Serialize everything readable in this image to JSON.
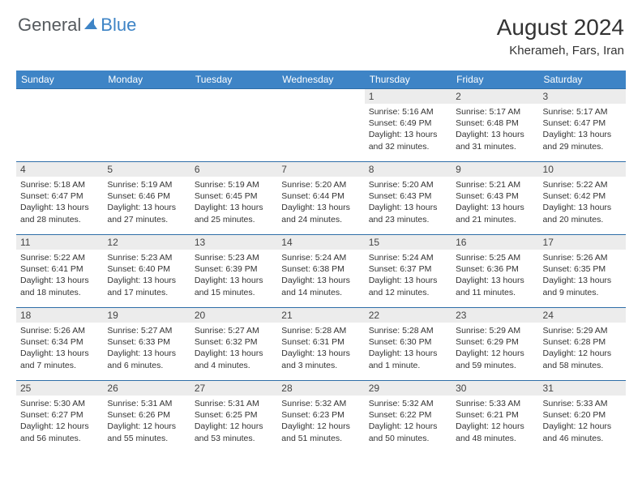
{
  "logo": {
    "text1": "General",
    "text2": "Blue",
    "text1_color": "#5a5f63",
    "text2_color": "#3e84c6",
    "sail_color": "#3e84c6"
  },
  "header": {
    "month_title": "August 2024",
    "location": "Kherameh, Fars, Iran"
  },
  "style": {
    "header_bg": "#3e84c6",
    "header_text": "#ffffff",
    "row_border": "#2f6ea8",
    "daynum_bg": "#ececec",
    "body_text": "#333333",
    "font_daynum": 12,
    "font_info": 10.5
  },
  "day_labels": [
    "Sunday",
    "Monday",
    "Tuesday",
    "Wednesday",
    "Thursday",
    "Friday",
    "Saturday"
  ],
  "labels": {
    "sunrise": "Sunrise:",
    "sunset": "Sunset:",
    "daylight": "Daylight:"
  },
  "weeks": [
    [
      {
        "empty": true
      },
      {
        "empty": true
      },
      {
        "empty": true
      },
      {
        "empty": true
      },
      {
        "n": "1",
        "sr": "5:16 AM",
        "ss": "6:49 PM",
        "dl": "13 hours and 32 minutes."
      },
      {
        "n": "2",
        "sr": "5:17 AM",
        "ss": "6:48 PM",
        "dl": "13 hours and 31 minutes."
      },
      {
        "n": "3",
        "sr": "5:17 AM",
        "ss": "6:47 PM",
        "dl": "13 hours and 29 minutes."
      }
    ],
    [
      {
        "n": "4",
        "sr": "5:18 AM",
        "ss": "6:47 PM",
        "dl": "13 hours and 28 minutes."
      },
      {
        "n": "5",
        "sr": "5:19 AM",
        "ss": "6:46 PM",
        "dl": "13 hours and 27 minutes."
      },
      {
        "n": "6",
        "sr": "5:19 AM",
        "ss": "6:45 PM",
        "dl": "13 hours and 25 minutes."
      },
      {
        "n": "7",
        "sr": "5:20 AM",
        "ss": "6:44 PM",
        "dl": "13 hours and 24 minutes."
      },
      {
        "n": "8",
        "sr": "5:20 AM",
        "ss": "6:43 PM",
        "dl": "13 hours and 23 minutes."
      },
      {
        "n": "9",
        "sr": "5:21 AM",
        "ss": "6:43 PM",
        "dl": "13 hours and 21 minutes."
      },
      {
        "n": "10",
        "sr": "5:22 AM",
        "ss": "6:42 PM",
        "dl": "13 hours and 20 minutes."
      }
    ],
    [
      {
        "n": "11",
        "sr": "5:22 AM",
        "ss": "6:41 PM",
        "dl": "13 hours and 18 minutes."
      },
      {
        "n": "12",
        "sr": "5:23 AM",
        "ss": "6:40 PM",
        "dl": "13 hours and 17 minutes."
      },
      {
        "n": "13",
        "sr": "5:23 AM",
        "ss": "6:39 PM",
        "dl": "13 hours and 15 minutes."
      },
      {
        "n": "14",
        "sr": "5:24 AM",
        "ss": "6:38 PM",
        "dl": "13 hours and 14 minutes."
      },
      {
        "n": "15",
        "sr": "5:24 AM",
        "ss": "6:37 PM",
        "dl": "13 hours and 12 minutes."
      },
      {
        "n": "16",
        "sr": "5:25 AM",
        "ss": "6:36 PM",
        "dl": "13 hours and 11 minutes."
      },
      {
        "n": "17",
        "sr": "5:26 AM",
        "ss": "6:35 PM",
        "dl": "13 hours and 9 minutes."
      }
    ],
    [
      {
        "n": "18",
        "sr": "5:26 AM",
        "ss": "6:34 PM",
        "dl": "13 hours and 7 minutes."
      },
      {
        "n": "19",
        "sr": "5:27 AM",
        "ss": "6:33 PM",
        "dl": "13 hours and 6 minutes."
      },
      {
        "n": "20",
        "sr": "5:27 AM",
        "ss": "6:32 PM",
        "dl": "13 hours and 4 minutes."
      },
      {
        "n": "21",
        "sr": "5:28 AM",
        "ss": "6:31 PM",
        "dl": "13 hours and 3 minutes."
      },
      {
        "n": "22",
        "sr": "5:28 AM",
        "ss": "6:30 PM",
        "dl": "13 hours and 1 minute."
      },
      {
        "n": "23",
        "sr": "5:29 AM",
        "ss": "6:29 PM",
        "dl": "12 hours and 59 minutes."
      },
      {
        "n": "24",
        "sr": "5:29 AM",
        "ss": "6:28 PM",
        "dl": "12 hours and 58 minutes."
      }
    ],
    [
      {
        "n": "25",
        "sr": "5:30 AM",
        "ss": "6:27 PM",
        "dl": "12 hours and 56 minutes."
      },
      {
        "n": "26",
        "sr": "5:31 AM",
        "ss": "6:26 PM",
        "dl": "12 hours and 55 minutes."
      },
      {
        "n": "27",
        "sr": "5:31 AM",
        "ss": "6:25 PM",
        "dl": "12 hours and 53 minutes."
      },
      {
        "n": "28",
        "sr": "5:32 AM",
        "ss": "6:23 PM",
        "dl": "12 hours and 51 minutes."
      },
      {
        "n": "29",
        "sr": "5:32 AM",
        "ss": "6:22 PM",
        "dl": "12 hours and 50 minutes."
      },
      {
        "n": "30",
        "sr": "5:33 AM",
        "ss": "6:21 PM",
        "dl": "12 hours and 48 minutes."
      },
      {
        "n": "31",
        "sr": "5:33 AM",
        "ss": "6:20 PM",
        "dl": "12 hours and 46 minutes."
      }
    ]
  ]
}
